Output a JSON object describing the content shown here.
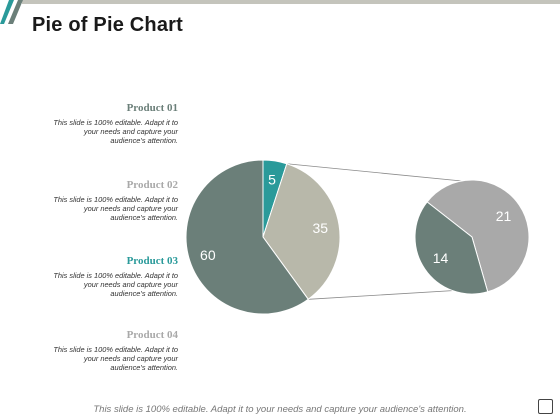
{
  "page": {
    "title": "Pie of Pie Chart",
    "footer": "This slide is 100% editable. Adapt it to your needs and capture your audience's attention."
  },
  "legend": [
    {
      "name": "Product 01",
      "color": "#6b7f79",
      "desc": [
        "This slide is 100% editable. Adapt it to",
        "your needs and capture your",
        "audience's attention."
      ]
    },
    {
      "name": "Product 02",
      "color": "#a9a9a9",
      "desc": [
        "This slide is 100% editable. Adapt it to",
        "your needs and capture your",
        "audience's attention."
      ]
    },
    {
      "name": "Product 03",
      "color": "#2a9a9a",
      "desc": [
        "This slide is 100% editable. Adapt it to",
        "your needs and capture your",
        "audience's attention."
      ]
    },
    {
      "name": "Product 04",
      "color": "#a9a9a9",
      "desc": [
        "This slide is 100% editable. Adapt it to",
        "your needs and capture your",
        "audience's attention."
      ]
    }
  ],
  "chart_data": {
    "type": "pie",
    "title": "",
    "main_pie": {
      "values": [
        5,
        35,
        60
      ],
      "colors": [
        "#2a9a9a",
        "#b8b8aa",
        "#6b7f79"
      ]
    },
    "secondary_pie": {
      "values": [
        21,
        14
      ],
      "colors": [
        "#a9a9a9",
        "#6b7f79"
      ]
    },
    "label_color": "#ffffff"
  }
}
